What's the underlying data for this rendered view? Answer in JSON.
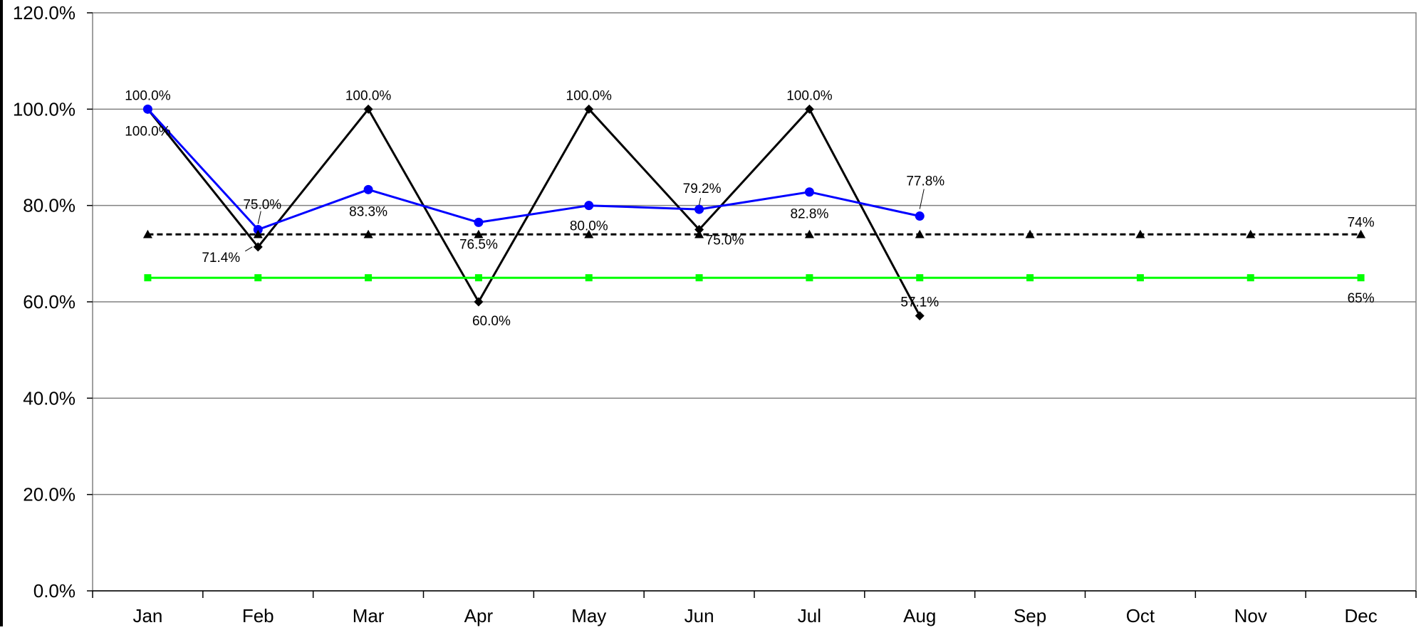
{
  "colors": {
    "black_series": "#000000",
    "blue_series": "#0000ff",
    "target_series": "#000000",
    "green_series": "#00ff00",
    "gridline": "#808080",
    "background": "#ffffff"
  },
  "chart_data": {
    "type": "line",
    "title": "",
    "xlabel": "",
    "ylabel": "",
    "ylim": [
      0,
      120
    ],
    "y_tick_step": 20,
    "y_tick_labels": [
      "0.0%",
      "20.0%",
      "40.0%",
      "60.0%",
      "80.0%",
      "100.0%",
      "120.0%"
    ],
    "grid": true,
    "legend": "none",
    "categories": [
      "Jan",
      "Feb",
      "Mar",
      "Apr",
      "May",
      "Jun",
      "Jul",
      "Aug",
      "Sep",
      "Oct",
      "Nov",
      "Dec"
    ],
    "series": [
      {
        "key": "black",
        "marker": "diamond",
        "dashed": false,
        "values": [
          100.0,
          71.4,
          100.0,
          60.0,
          100.0,
          75.0,
          100.0,
          57.1,
          null,
          null,
          null,
          null
        ],
        "labels": [
          "100.0%",
          "71.4%",
          "100.0%",
          "60.0%",
          "100.0%",
          "75.0%",
          "100.0%",
          "57.1%",
          null,
          null,
          null,
          null
        ]
      },
      {
        "key": "blue",
        "marker": "circle",
        "dashed": false,
        "values": [
          100.0,
          75.0,
          83.3,
          76.5,
          80.0,
          79.2,
          82.8,
          77.8,
          null,
          null,
          null,
          null
        ],
        "labels": [
          "100.0%",
          "75.0%",
          "83.3%",
          "76.5%",
          "80.0%",
          "79.2%",
          "82.8%",
          "77.8%",
          null,
          null,
          null,
          null
        ]
      },
      {
        "key": "target",
        "marker": "triangle",
        "dashed": true,
        "values": [
          74,
          74,
          74,
          74,
          74,
          74,
          74,
          74,
          74,
          74,
          74,
          74
        ],
        "labels": [
          null,
          null,
          null,
          null,
          null,
          null,
          null,
          null,
          null,
          null,
          null,
          "74%"
        ]
      },
      {
        "key": "green",
        "marker": "square",
        "dashed": false,
        "values": [
          65,
          65,
          65,
          65,
          65,
          65,
          65,
          65,
          65,
          65,
          65,
          65
        ],
        "labels": [
          null,
          null,
          null,
          null,
          null,
          null,
          null,
          null,
          null,
          null,
          null,
          "65%"
        ]
      }
    ]
  }
}
